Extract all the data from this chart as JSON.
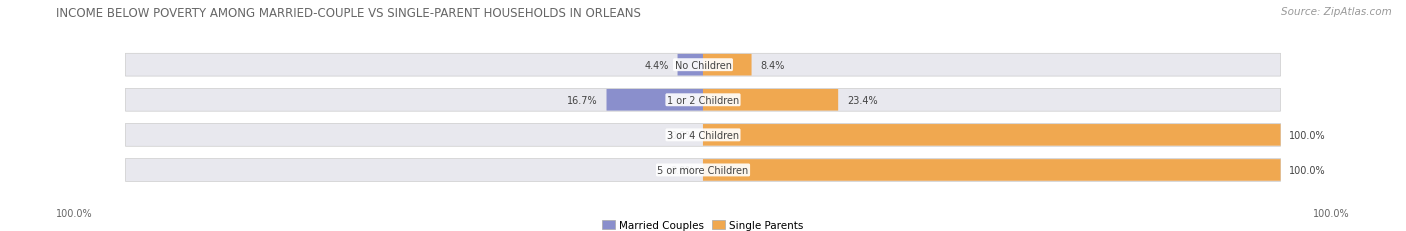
{
  "title": "INCOME BELOW POVERTY AMONG MARRIED-COUPLE VS SINGLE-PARENT HOUSEHOLDS IN ORLEANS",
  "source": "Source: ZipAtlas.com",
  "categories": [
    "No Children",
    "1 or 2 Children",
    "3 or 4 Children",
    "5 or more Children"
  ],
  "married_values": [
    4.4,
    16.7,
    0.0,
    0.0
  ],
  "single_values": [
    8.4,
    23.4,
    100.0,
    100.0
  ],
  "married_color": "#8a8fcc",
  "single_color": "#f0a850",
  "bar_bg_color": "#e8e8ee",
  "bg_color": "#ffffff",
  "title_color": "#666666",
  "source_color": "#999999",
  "label_color": "#444444",
  "category_color": "#444444",
  "axis_label_color": "#666666",
  "title_fontsize": 8.5,
  "source_fontsize": 7.5,
  "label_fontsize": 7.0,
  "category_fontsize": 7.0,
  "legend_fontsize": 7.5,
  "axis_label_fontsize": 7.0,
  "bar_height": 0.62,
  "left_label": "100.0%",
  "right_label": "100.0%",
  "max_val": 100
}
